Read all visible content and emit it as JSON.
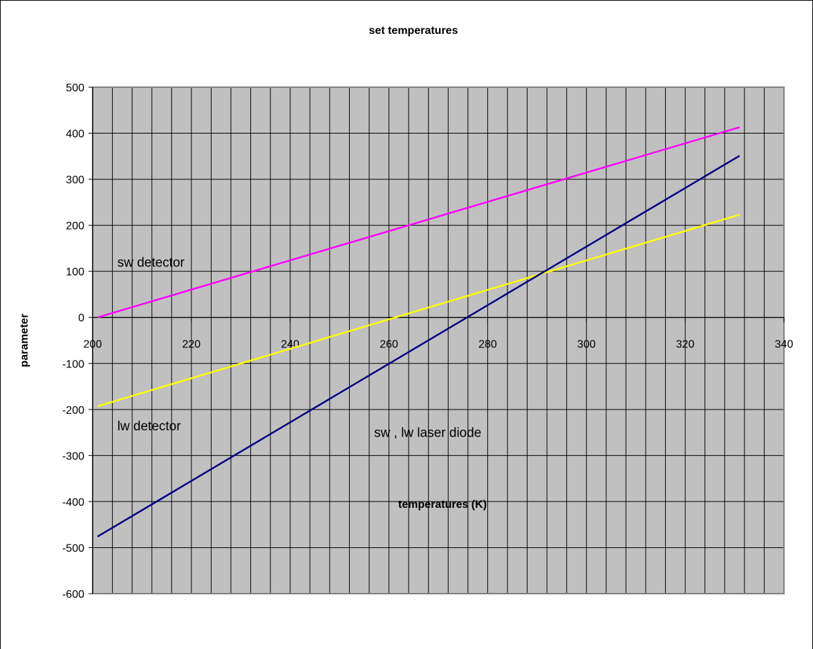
{
  "chart_data": {
    "type": "line",
    "title": "set temperatures",
    "xlabel": "temperatures (K)",
    "ylabel": "parameter",
    "xlim": [
      200,
      340
    ],
    "ylim": [
      -600,
      500
    ],
    "x_ticks": [
      200,
      220,
      240,
      260,
      280,
      300,
      320,
      340
    ],
    "y_ticks": [
      500,
      400,
      300,
      200,
      100,
      0,
      -100,
      -200,
      -300,
      -400,
      -500,
      -600
    ],
    "grid": true,
    "legend": "none",
    "plot_background": "#c0c0c0",
    "series": [
      {
        "color": "#ff00ff",
        "x": [
          201,
          331
        ],
        "y": [
          0,
          413
        ]
      },
      {
        "color": "#ffff00",
        "x": [
          201,
          331
        ],
        "y": [
          -193,
          223
        ]
      },
      {
        "color": "#000080",
        "x": [
          201,
          331
        ],
        "y": [
          -476,
          351
        ]
      }
    ],
    "annotations": [
      {
        "text": "sw detector",
        "x": 205,
        "y": 110
      },
      {
        "text": "lw detector",
        "x": 205,
        "y": -245
      },
      {
        "text": "sw , lw laser diode",
        "x": 257,
        "y": -260
      }
    ]
  }
}
